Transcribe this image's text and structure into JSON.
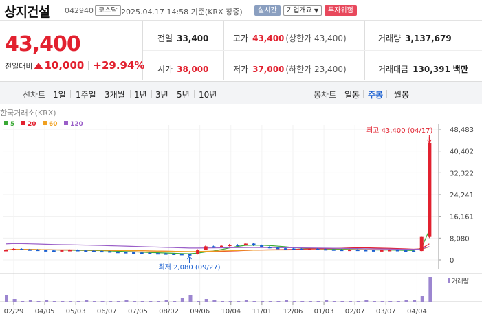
{
  "header": {
    "name": "상지건설",
    "code": "042940",
    "market": "코스닥",
    "datetime": "2025.04.17 14:58 기준(KRX 장중)",
    "realtime_label": "실시간",
    "company_label": "기업개요",
    "risk_label": "투자위험"
  },
  "price": {
    "current": "43,400",
    "change_label": "전일대비",
    "change_amount": "10,000",
    "change_percent": "+29.94%"
  },
  "stats": {
    "prev_close_label": "전일",
    "prev_close": "33,400",
    "high_label": "고가",
    "high": "43,400",
    "high_sub": "(상한가 43,400)",
    "volume_label": "거래량",
    "volume": "3,137,679",
    "open_label": "시가",
    "open": "38,000",
    "low_label": "저가",
    "low": "37,000",
    "low_sub": "(하한가 23,400)",
    "value_label": "거래대금",
    "value": "130,391",
    "value_unit": "백만"
  },
  "tabs": {
    "line_label": "선차트",
    "periods": [
      "1일",
      "1주일",
      "3개월",
      "1년",
      "3년",
      "5년",
      "10년"
    ],
    "candle_label": "봉차트",
    "candles": [
      "일봉",
      "주봉",
      "월봉"
    ],
    "active_candle": "주봉"
  },
  "chart_data": {
    "type": "candlestick",
    "source_label": "한국거래소(KRX)",
    "moving_averages": [
      {
        "name": "5",
        "color": "#3aa935"
      },
      {
        "name": "20",
        "color": "#e2212f"
      },
      {
        "name": "60",
        "color": "#f0a020"
      },
      {
        "name": "120",
        "color": "#9a5ec8"
      }
    ],
    "y_ticks": [
      "48,483",
      "40,402",
      "32,322",
      "24,241",
      "16,161",
      "8,080",
      "0"
    ],
    "ylim": [
      0,
      48483
    ],
    "x_ticks": [
      "02/29",
      "04/05",
      "05/03",
      "06/07",
      "07/05",
      "08/02",
      "09/06",
      "10/04",
      "11/01",
      "12/06",
      "01/03",
      "02/07",
      "03/07",
      "04/04"
    ],
    "high_annotation": "최고 43,400 (04/17)",
    "low_annotation": "최저 2,080 (09/27)",
    "volume_label": "거래량",
    "weekly_close": [
      3700,
      4100,
      3900,
      3800,
      3600,
      3500,
      3400,
      3600,
      3700,
      3500,
      3400,
      3300,
      3200,
      3000,
      2900,
      2800,
      2700,
      2600,
      2500,
      2400,
      2300,
      2200,
      2100,
      2080,
      3800,
      5000,
      4800,
      5200,
      5600,
      5500,
      6000,
      5400,
      4800,
      4500,
      4300,
      4200,
      4100,
      4000,
      4100,
      4000,
      3900,
      3800,
      3700,
      3800,
      3700,
      3600,
      3500,
      3600,
      3700,
      3500,
      3400,
      3300,
      8500,
      43400
    ]
  }
}
